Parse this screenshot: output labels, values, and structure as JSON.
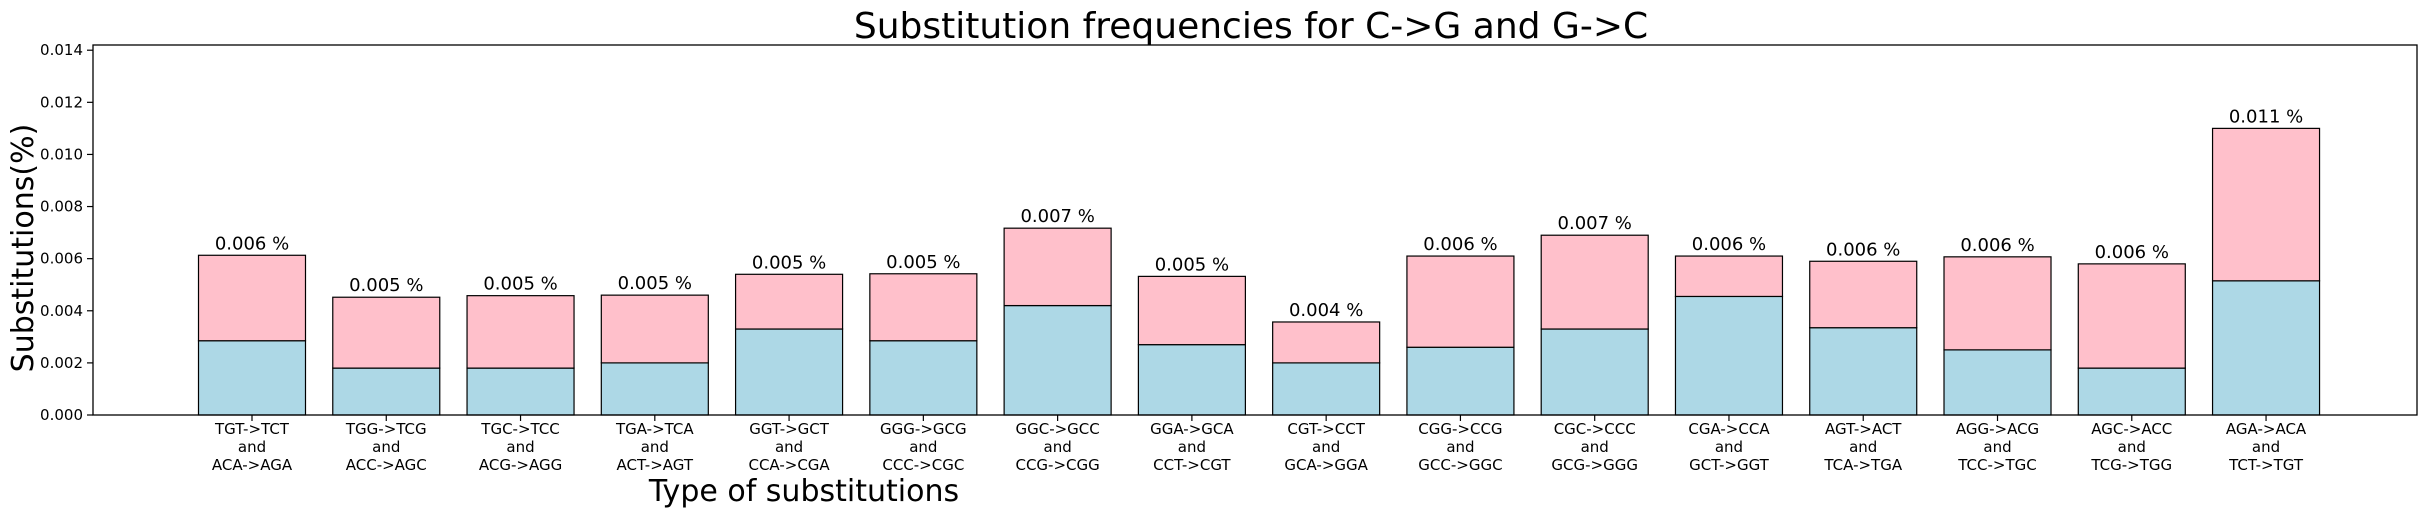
{
  "chart_data": {
    "type": "bar",
    "stacked": true,
    "title": "Substitution frequencies for C->G and G->C",
    "xlabel": "Type of substitutions",
    "ylabel": "Substitutions(%)",
    "ylim": [
      0,
      0.0142
    ],
    "yticks": [
      "0.000",
      "0.002",
      "0.004",
      "0.006",
      "0.008",
      "0.010",
      "0.012",
      "0.014"
    ],
    "categories": [
      [
        "TGT->TCT",
        "and",
        "ACA->AGA"
      ],
      [
        "TGG->TCG",
        "and",
        "ACC->AGC"
      ],
      [
        "TGC->TCC",
        "and",
        "ACG->AGG"
      ],
      [
        "TGA->TCA",
        "and",
        "ACT->AGT"
      ],
      [
        "GGT->GCT",
        "and",
        "CCA->CGA"
      ],
      [
        "GGG->GCG",
        "and",
        "CCC->CGC"
      ],
      [
        "GGC->GCC",
        "and",
        "CCG->CGG"
      ],
      [
        "GGA->GCA",
        "and",
        "CCT->CGT"
      ],
      [
        "CGT->CCT",
        "and",
        "GCA->GGA"
      ],
      [
        "CGG->CCG",
        "and",
        "GCC->GGC"
      ],
      [
        "CGC->CCC",
        "and",
        "GCG->GGG"
      ],
      [
        "CGA->CCA",
        "and",
        "GCT->GGT"
      ],
      [
        "AGT->ACT",
        "and",
        "TCA->TGA"
      ],
      [
        "AGG->ACG",
        "and",
        "TCC->TGC"
      ],
      [
        "AGC->ACC",
        "and",
        "TCG->TGG"
      ],
      [
        "AGA->ACA",
        "and",
        "TCT->TGT"
      ]
    ],
    "series": [
      {
        "color": "#add8e6",
        "values": [
          0.00285,
          0.0018,
          0.0018,
          0.002,
          0.0033,
          0.00285,
          0.0042,
          0.0027,
          0.002,
          0.0026,
          0.0033,
          0.00455,
          0.00335,
          0.0025,
          0.0018,
          0.00515
        ]
      },
      {
        "color": "#ffc0cb",
        "values": [
          0.00328,
          0.00272,
          0.00278,
          0.0026,
          0.0021,
          0.00257,
          0.00297,
          0.00262,
          0.00157,
          0.0035,
          0.0036,
          0.00155,
          0.00255,
          0.00357,
          0.004,
          0.00585
        ]
      }
    ],
    "data_labels": [
      "0.006 %",
      "0.005 %",
      "0.005 %",
      "0.005 %",
      "0.005 %",
      "0.005 %",
      "0.007 %",
      "0.005 %",
      "0.004 %",
      "0.006 %",
      "0.007 %",
      "0.006 %",
      "0.006 %",
      "0.006 %",
      "0.006 %",
      "0.011 %"
    ],
    "grid": false,
    "edge_color": "#000000"
  }
}
